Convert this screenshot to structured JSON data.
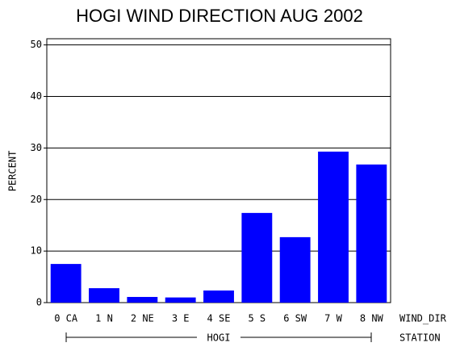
{
  "chart_data": {
    "type": "bar",
    "title": "HOGI WIND DIRECTION AUG 2002",
    "y_label": "PERCENT",
    "x_label": "WIND_DIR",
    "group_label": "HOGI",
    "group_axis_label": "STATION",
    "categories": [
      "0 CA",
      "1 N",
      "2 NE",
      "3 E",
      "4 SE",
      "5 S",
      "6 SW",
      "7 W",
      "8 NW"
    ],
    "values": [
      7.5,
      2.8,
      1.1,
      1.0,
      2.35,
      17.4,
      12.7,
      29.3,
      26.8
    ],
    "color": "#0000ff",
    "ylim": [
      0,
      51.2
    ],
    "yticks": [
      0,
      10,
      20,
      30,
      40,
      50
    ],
    "grid": true
  }
}
